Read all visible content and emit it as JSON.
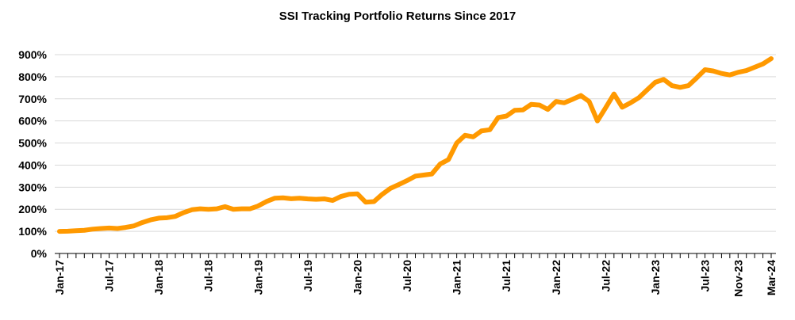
{
  "chart_data": {
    "type": "line",
    "title": "SSI Tracking Portfolio Returns Since 2017",
    "xlabel": "",
    "ylabel": "",
    "ylim": [
      0,
      900
    ],
    "y_ticks": [
      0,
      100,
      200,
      300,
      400,
      500,
      600,
      700,
      800,
      900
    ],
    "y_tick_labels": [
      "0%",
      "100%",
      "200%",
      "300%",
      "400%",
      "500%",
      "600%",
      "700%",
      "800%",
      "900%"
    ],
    "x_tick_labels": [
      "Jan-17",
      "Jul-17",
      "Jan-18",
      "Jul-18",
      "Jan-19",
      "Jul-19",
      "Jan-20",
      "Jul-20",
      "Jan-21",
      "Jul-21",
      "Jan-22",
      "Jul-22",
      "Jan-23",
      "Jul-23",
      "Nov-23",
      "Mar-24"
    ],
    "x_tick_month_index": [
      0,
      6,
      12,
      18,
      24,
      30,
      36,
      42,
      48,
      54,
      60,
      66,
      72,
      78,
      82,
      86
    ],
    "grid": true,
    "series": [
      {
        "name": "SSI Tracking Portfolio",
        "color": "#FF9900",
        "values": [
          100,
          101,
          103,
          105,
          110,
          113,
          115,
          113,
          118,
          125,
          140,
          152,
          160,
          162,
          168,
          185,
          198,
          202,
          200,
          202,
          212,
          200,
          202,
          202,
          215,
          235,
          250,
          252,
          248,
          250,
          247,
          245,
          247,
          240,
          258,
          268,
          270,
          232,
          235,
          268,
          295,
          312,
          330,
          350,
          355,
          360,
          405,
          425,
          500,
          535,
          528,
          555,
          560,
          615,
          622,
          648,
          650,
          675,
          672,
          652,
          688,
          682,
          698,
          715,
          688,
          600,
          660,
          722,
          662,
          682,
          705,
          740,
          775,
          788,
          760,
          752,
          760,
          795,
          832,
          826,
          815,
          808,
          820,
          828,
          843,
          858,
          882
        ]
      }
    ]
  }
}
